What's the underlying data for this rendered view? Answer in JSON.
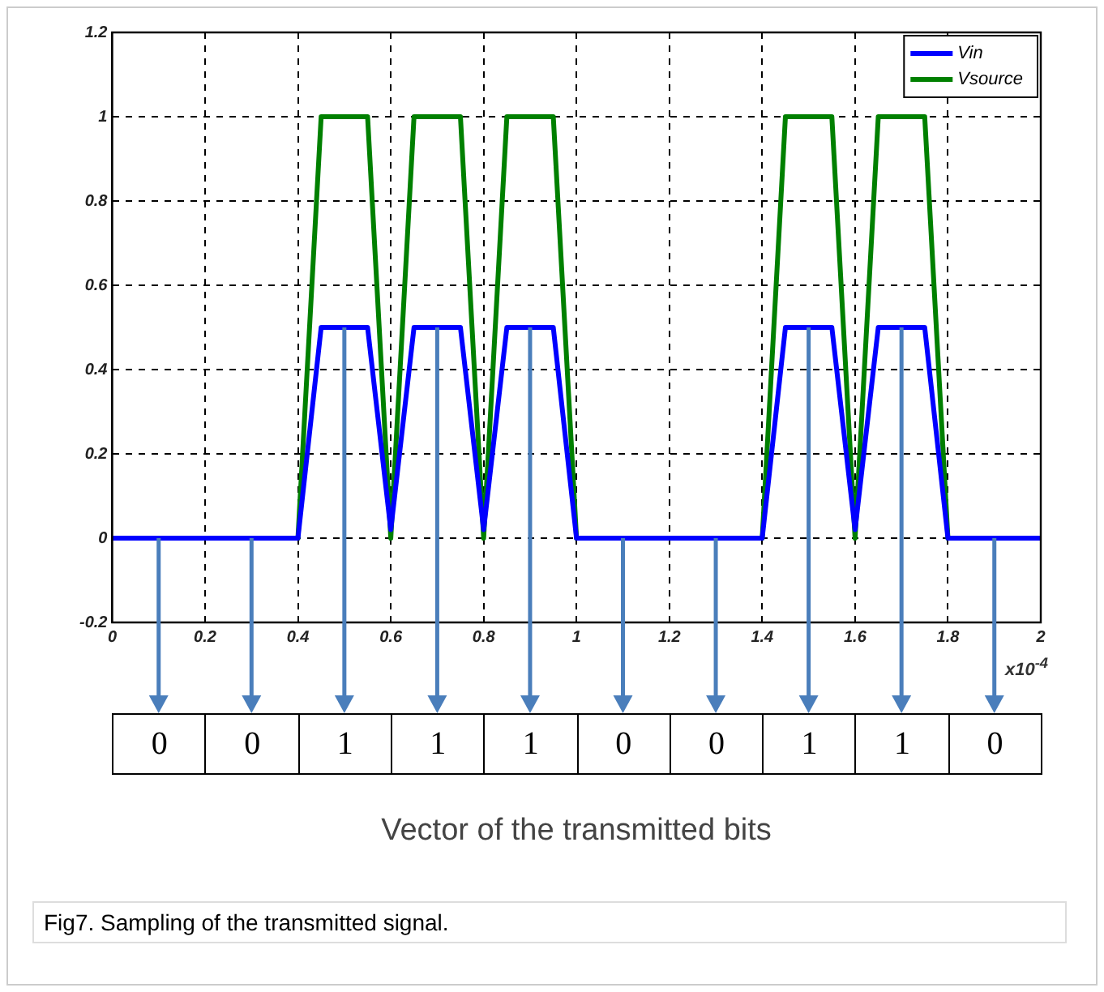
{
  "chart_data": {
    "type": "line",
    "xlabel": "x10$^{-4}$",
    "xlim": [
      0,
      2
    ],
    "xticks": [
      0,
      0.2,
      0.4,
      0.6,
      0.8,
      1,
      1.2,
      1.4,
      1.6,
      1.8,
      2
    ],
    "ylim": [
      -0.2,
      1.2
    ],
    "yticks": [
      -0.2,
      0,
      0.2,
      0.4,
      0.6,
      0.8,
      1,
      1.2
    ],
    "grid": true,
    "legend": "top right",
    "marker": "none",
    "line_style": "solid",
    "series": [
      {
        "name": "Vin",
        "color": "#0000ff",
        "x": [
          0,
          0.4,
          0.45,
          0.55,
          0.6,
          0.65,
          0.75,
          0.8,
          0.85,
          0.95,
          0.99,
          1,
          1.4,
          1.45,
          1.55,
          1.6,
          1.65,
          1.75,
          1.79,
          1.8,
          2
        ],
        "values": [
          0,
          0,
          0.5,
          0.5,
          0.02,
          0.5,
          0.5,
          0.02,
          0.5,
          0.5,
          0.1,
          0,
          0,
          0.5,
          0.5,
          0.02,
          0.5,
          0.5,
          0.1,
          0,
          0
        ]
      },
      {
        "name": "Vsource",
        "color": "#008000",
        "x": [
          0,
          0.4,
          0.45,
          0.55,
          0.6,
          0.65,
          0.75,
          0.8,
          0.85,
          0.95,
          1,
          1.4,
          1.45,
          1.55,
          1.6,
          1.65,
          1.75,
          1.8,
          2
        ],
        "values": [
          0,
          0,
          1,
          1,
          0,
          1,
          1,
          0,
          1,
          1,
          0,
          0,
          1,
          1,
          0,
          1,
          1,
          0,
          0
        ]
      }
    ],
    "annotations": [
      {
        "text": "0",
        "x": 0.1,
        "y": 0
      },
      {
        "text": "0",
        "x": 0.3,
        "y": 0
      },
      {
        "text": "1",
        "x": 0.5,
        "y": 0.5
      },
      {
        "text": "1",
        "x": 0.7,
        "y": 0.5
      },
      {
        "text": "1",
        "x": 0.9,
        "y": 0.5
      },
      {
        "text": "0",
        "x": 1.1,
        "y": 0
      },
      {
        "text": "0",
        "x": 1.3,
        "y": 0
      },
      {
        "text": "1",
        "x": 1.5,
        "y": 0.5
      },
      {
        "text": "1",
        "x": 1.7,
        "y": 0.5
      },
      {
        "text": "0",
        "x": 1.9,
        "y": 0
      },
      "Vector of the transmitted bits",
      "Fig7. Sampling of the transmitted signal."
    ]
  }
}
